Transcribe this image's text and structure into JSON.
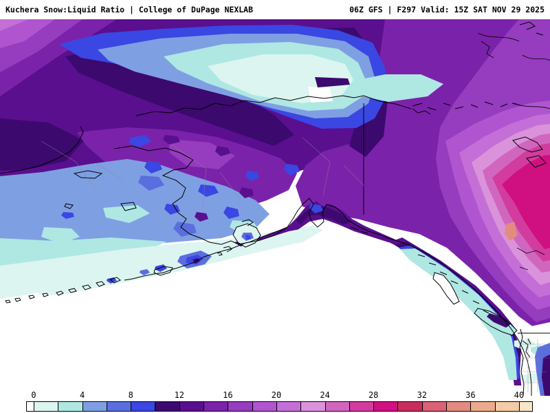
{
  "header": {
    "title_left": "Kuchera Snow:Liquid Ratio | College of DuPage NEXLAB",
    "title_right": "06Z GFS | F297 Valid: 15Z SAT NOV 29 2025"
  },
  "map": {
    "kind": "filled-contour forecast map",
    "region": "Alaska / Bering Sea / Gulf of Alaska / NW Canada"
  },
  "colorbar": {
    "min": 0,
    "max": 40,
    "ticks": [
      0,
      4,
      8,
      12,
      16,
      20,
      24,
      28,
      32,
      36,
      40
    ],
    "segments": [
      {
        "from": null,
        "to": 0,
        "color": "#ffffff"
      },
      {
        "from": 0,
        "to": 2,
        "color": "#dcf5f0"
      },
      {
        "from": 2,
        "to": 4,
        "color": "#afe7e3"
      },
      {
        "from": 4,
        "to": 6,
        "color": "#7f9fe3"
      },
      {
        "from": 6,
        "to": 8,
        "color": "#5b6ede"
      },
      {
        "from": 8,
        "to": 10,
        "color": "#3a47e2"
      },
      {
        "from": 10,
        "to": 12,
        "color": "#3c096f"
      },
      {
        "from": 12,
        "to": 14,
        "color": "#5a0f8e"
      },
      {
        "from": 14,
        "to": 16,
        "color": "#7b22aa"
      },
      {
        "from": 16,
        "to": 18,
        "color": "#963cbe"
      },
      {
        "from": 18,
        "to": 20,
        "color": "#b055cf"
      },
      {
        "from": 20,
        "to": 22,
        "color": "#c46fd7"
      },
      {
        "from": 22,
        "to": 24,
        "color": "#da93da"
      },
      {
        "from": 24,
        "to": 26,
        "color": "#d166bf"
      },
      {
        "from": 26,
        "to": 28,
        "color": "#d23c9e"
      },
      {
        "from": 28,
        "to": 30,
        "color": "#d01080"
      },
      {
        "from": 30,
        "to": 32,
        "color": "#c92d5e"
      },
      {
        "from": 32,
        "to": 34,
        "color": "#d96274"
      },
      {
        "from": 34,
        "to": 36,
        "color": "#e28b80"
      },
      {
        "from": 36,
        "to": 38,
        "color": "#ecab8c"
      },
      {
        "from": 38,
        "to": 40,
        "color": "#f3cba5"
      },
      {
        "from": 40,
        "to": null,
        "color": "#f8e6c9"
      }
    ]
  }
}
